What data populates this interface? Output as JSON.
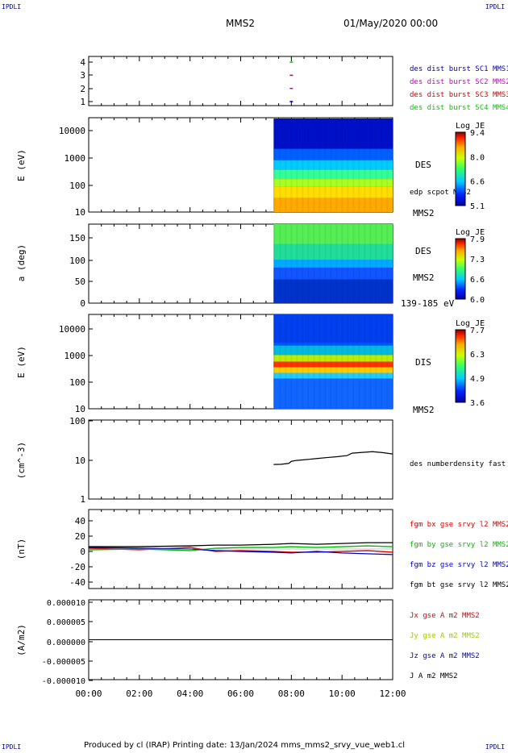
{
  "corners": {
    "tl": "IPDLI",
    "tr": "IPDLI",
    "bl": "IPDLI",
    "br": "IPDLI"
  },
  "header": {
    "spacecraft": "MMS2",
    "datetime": "01/May/2020 00:00"
  },
  "footer": "Produced by cl (IRAP)   Printing date: 13/Jan/2024   mms_mms2_srvy_vue_web1.cl",
  "time_axis": {
    "ticks": [
      "00:00",
      "02:00",
      "04:00",
      "06:00",
      "08:00",
      "10:00",
      "12:00"
    ]
  },
  "chart_data": [
    {
      "type": "scatter",
      "ylim": [
        0.5,
        4.5
      ],
      "y_ticks": [
        "4",
        "3",
        "2",
        "1"
      ],
      "series": [
        {
          "name": "des dist burst SC1 MMS1",
          "color": "#0000cc",
          "points": [
            [
              8.0,
              1
            ]
          ]
        },
        {
          "name": "des dist burst SC2 MMS2",
          "color": "#cc00cc",
          "points": [
            [
              8.0,
              2
            ]
          ]
        },
        {
          "name": "des dist burst SC3 MMS3",
          "color": "#dd0000",
          "points": [
            [
              8.0,
              3
            ]
          ]
        },
        {
          "name": "des dist burst SC4 MMS4",
          "color": "#00cc00",
          "points": [
            [
              8.0,
              4
            ]
          ]
        }
      ]
    },
    {
      "type": "heatmap",
      "ylabel": "E (eV)",
      "y_ticks": [
        "10000",
        "1000",
        "100",
        "10"
      ],
      "label": "DES",
      "label2": "edp scpot MMS2",
      "label3": "MMS2",
      "colorbar": {
        "title": "Log JE",
        "ticks": [
          "9.4",
          "8.0",
          "6.6",
          "5.1"
        ]
      },
      "data_start_hour": 7.3
    },
    {
      "type": "heatmap",
      "ylabel": "a (deg)",
      "y_ticks": [
        "150",
        "100",
        "50",
        "0"
      ],
      "label": "DES",
      "label2": "MMS2",
      "label3": "139-185 eV",
      "colorbar": {
        "title": "Log JE",
        "ticks": [
          "7.9",
          "7.3",
          "6.6",
          "6.0"
        ]
      },
      "data_start_hour": 7.3
    },
    {
      "type": "heatmap",
      "ylabel": "E (eV)",
      "y_ticks": [
        "10000",
        "1000",
        "100",
        "10"
      ],
      "label": "DIS",
      "label2": "MMS2",
      "colorbar": {
        "title": "Log JE",
        "ticks": [
          "7.7",
          "6.3",
          "4.9",
          "3.6"
        ]
      },
      "data_start_hour": 7.3
    },
    {
      "type": "line",
      "ylabel": "(cm^-3)",
      "y_ticks": [
        "100",
        "10",
        "1"
      ],
      "ylog": true,
      "series": [
        {
          "name": "des numberdensity fast M",
          "color": "#000000",
          "x": [
            7.3,
            7.6,
            7.9,
            8.0,
            8.2,
            8.6,
            9.0,
            9.4,
            9.8,
            10.2,
            10.4,
            10.8,
            11.2,
            11.6,
            12.0
          ],
          "y": [
            7.5,
            7.6,
            8.0,
            9.0,
            9.5,
            10.0,
            10.6,
            11.2,
            11.8,
            12.6,
            14.5,
            15.2,
            15.8,
            15.0,
            13.8
          ]
        }
      ]
    },
    {
      "type": "line",
      "ylabel": "(nT)",
      "y_ticks": [
        "40",
        "20",
        "0",
        "-20",
        "-40"
      ],
      "ylim": [
        -50,
        50
      ],
      "series": [
        {
          "name": "fgm bx gse srvy l2 MMS2",
          "color": "#dd0000",
          "x": [
            0,
            2,
            4,
            5,
            6,
            7.3,
            8,
            9,
            10,
            11,
            12
          ],
          "y": [
            1,
            -1,
            2,
            -3,
            -2,
            -3,
            -4,
            -4,
            -3,
            -2,
            -4
          ]
        },
        {
          "name": "fgm by gse srvy l2 MMS2",
          "color": "#00bb00",
          "x": [
            0,
            2,
            4,
            5,
            6,
            7.3,
            8,
            9,
            10,
            11,
            12
          ],
          "y": [
            -1,
            0,
            -2,
            1,
            2,
            2,
            3,
            2,
            3,
            4,
            3
          ]
        },
        {
          "name": "fgm bz gse srvy l2 MMS2",
          "color": "#0000cc",
          "x": [
            0,
            2,
            4,
            5,
            6,
            7.3,
            8,
            9,
            10,
            11,
            12
          ],
          "y": [
            2,
            1,
            0,
            -2,
            -3,
            -4,
            -5,
            -3,
            -5,
            -6,
            -7
          ]
        },
        {
          "name": "fgm bt gse srvy l2 MMS2",
          "color": "#000000",
          "x": [
            0,
            2,
            4,
            5,
            6,
            7.3,
            8,
            9,
            10,
            11,
            12
          ],
          "y": [
            3,
            3,
            4,
            5,
            5,
            6,
            7,
            6,
            7,
            8,
            8
          ]
        }
      ]
    },
    {
      "type": "line",
      "ylabel": "(A/m2)",
      "y_ticks": [
        "0.000010",
        "0.000005",
        "0.000000",
        "-0.000005",
        "-0.000010"
      ],
      "ylim": [
        -1e-05,
        1e-05
      ],
      "series": [
        {
          "name": "Jx gse A m2 MMS2",
          "color": "#dd0000",
          "x": [
            0,
            12
          ],
          "y": [
            0,
            0
          ]
        },
        {
          "name": "Jy gse A m2 MMS2",
          "color": "#99cc00",
          "x": [
            0,
            12
          ],
          "y": [
            0,
            0
          ]
        },
        {
          "name": "Jz gse A m2 MMS2",
          "color": "#0000cc",
          "x": [
            0,
            12
          ],
          "y": [
            0,
            0
          ]
        },
        {
          "name": "J A m2 MMS2",
          "color": "#000000",
          "x": [
            0,
            12
          ],
          "y": [
            0,
            0
          ]
        }
      ]
    }
  ]
}
